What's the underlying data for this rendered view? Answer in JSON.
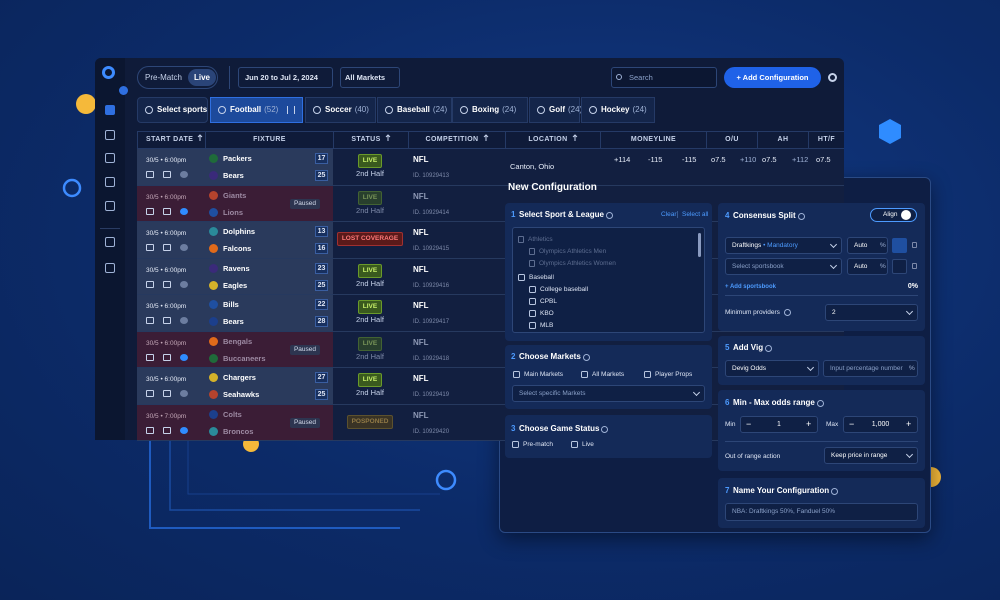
{
  "toolbar": {
    "mode_tabs": [
      "Pre-Match",
      "Live"
    ],
    "date_range": "Jun 20 to Jul 2, 2024",
    "markets": "All Markets",
    "search": "Search",
    "add_button": "+ Add Configuration"
  },
  "sport_tabs": [
    {
      "label": "Select sports"
    },
    {
      "label": "Football",
      "count": "(52)"
    },
    {
      "label": "Soccer",
      "count": "(40)"
    },
    {
      "label": "Baseball",
      "count": "(24)"
    },
    {
      "label": "Boxing",
      "count": "(24)"
    },
    {
      "label": "Golf",
      "count": "(24)"
    },
    {
      "label": "Hockey",
      "count": "(24)"
    }
  ],
  "table": {
    "headers": [
      "START DATE",
      "FIXTURE",
      "STATUS",
      "COMPETITION",
      "LOCATION",
      "MONEYLINE",
      "O/U",
      "AH",
      "HT/F"
    ],
    "rows": [
      {
        "time": "30/5 • 6:00pm",
        "home": "Packers",
        "home_score": "17",
        "away": "Bears",
        "away_score": "25",
        "status": "LIVE",
        "period": "2nd Half",
        "competition": "NFL",
        "id": "ID. 10929413",
        "location": "Canton, Ohio",
        "odds": [
          "+114",
          "-115",
          "-115",
          "o7.5",
          "+110",
          "o7.5",
          "+112",
          "o7.5"
        ]
      },
      {
        "time": "30/5 • 6:00pm",
        "home": "Giants",
        "away": "Lions",
        "badge": "Paused",
        "status": "LIVE",
        "period": "2nd Half",
        "competition": "NFL",
        "id": "ID. 10929414"
      },
      {
        "time": "30/5 • 6:00pm",
        "home": "Dolphins",
        "home_score": "13",
        "away": "Falcons",
        "away_score": "16",
        "status": "LOST COVERAGE",
        "competition": "NFL",
        "id": "ID. 10929415"
      },
      {
        "time": "30/5 • 6:00pm",
        "home": "Ravens",
        "home_score": "23",
        "away": "Eagles",
        "away_score": "25",
        "status": "LIVE",
        "period": "2nd Half",
        "competition": "NFL",
        "id": "ID. 10929416"
      },
      {
        "time": "30/5 • 6:00pm",
        "home": "Bills",
        "home_score": "22",
        "away": "Bears",
        "away_score": "28",
        "status": "LIVE",
        "period": "2nd Half",
        "competition": "NFL",
        "id": "ID. 10929417"
      },
      {
        "time": "30/5 • 6:00pm",
        "home": "Bengals",
        "away": "Buccaneers",
        "badge": "Paused",
        "status": "LIVE",
        "period": "2nd Half",
        "competition": "NFL",
        "id": "ID. 10929418"
      },
      {
        "time": "30/5 • 6:00pm",
        "home": "Chargers",
        "home_score": "27",
        "away": "Seahawks",
        "away_score": "25",
        "status": "LIVE",
        "period": "2nd Half",
        "competition": "NFL",
        "id": "ID. 10929419"
      },
      {
        "time": "30/5 • 7:00pm",
        "home": "Colts",
        "away": "Broncos",
        "badge": "Paused",
        "status": "POSPONED",
        "competition": "NFL",
        "id": "ID. 10929420"
      }
    ]
  },
  "config": {
    "title": "New Configuration",
    "sport": {
      "number": "1",
      "title": "Select Sport & League",
      "clear": "Clear",
      "select_all": "Select all",
      "items": [
        "Athletics",
        "Olympics Athletics Men",
        "Olympics Athletics Women",
        "Baseball",
        "College baseball",
        "CPBL",
        "KBO",
        "MLB"
      ]
    },
    "markets": {
      "number": "2",
      "title": "Choose Markets",
      "options": [
        "Main Markets",
        "All Markets",
        "Player Props"
      ],
      "select": "Select specific Markets"
    },
    "status": {
      "number": "3",
      "title": "Choose Game Status",
      "options": [
        "Pre-match",
        "Live"
      ]
    },
    "consensus": {
      "number": "4",
      "title": "Consensus Split",
      "align": "Align",
      "book": "Draftkings",
      "tag": "• Mandatory",
      "auto": "Auto",
      "pct": "%",
      "select_book": "Select sportsbook",
      "add_book": "+ Add sportsbook",
      "total": "0%",
      "min_label": "Minimum providers",
      "min_value": "2"
    },
    "vig": {
      "number": "5",
      "title": "Add Vig",
      "select": "Devig Odds",
      "input": "Input percentage number",
      "pct": "%"
    },
    "range": {
      "number": "6",
      "title": "Min - Max odds range",
      "min_label": "Min",
      "min_value": "1",
      "max_label": "Max",
      "max_value": "1,000",
      "minus": "−",
      "plus": "+",
      "action_label": "Out of range action",
      "action": "Keep price in range"
    },
    "name": {
      "number": "7",
      "title": "Name Your Configuration",
      "placeholder": "NBA: Draftkings 50%, Fanduel 50%"
    }
  }
}
